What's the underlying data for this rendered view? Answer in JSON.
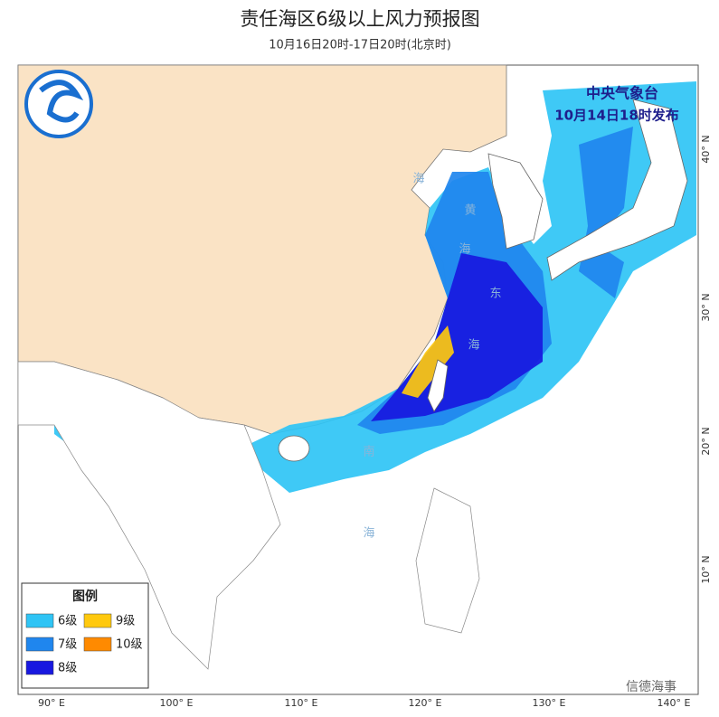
{
  "header": {
    "title": "责任海区6级以上风力预报图",
    "subtitle": "10月16日20时-17日20时(北京时)"
  },
  "issuer": {
    "name": "中央气象台",
    "issued": "10月14日18时发布"
  },
  "legend": {
    "title": "图例",
    "items": [
      {
        "label": "6级",
        "color": "#2fc4f5"
      },
      {
        "label": "9级",
        "color": "#ffc90e"
      },
      {
        "label": "7级",
        "color": "#1f86ee"
      },
      {
        "label": "10级",
        "color": "#ff8a00"
      },
      {
        "label": "8级",
        "color": "#1818e0"
      }
    ]
  },
  "longitude_labels": [
    "90° E",
    "100° E",
    "110° E",
    "120° E",
    "130° E",
    "140° E"
  ],
  "latitude_labels": [
    "10° N",
    "20° N",
    "30° N",
    "40° N"
  ],
  "sea_labels": [
    "海",
    "黄",
    "海",
    "东",
    "海",
    "南",
    "海"
  ],
  "watermark": "信德海事"
}
